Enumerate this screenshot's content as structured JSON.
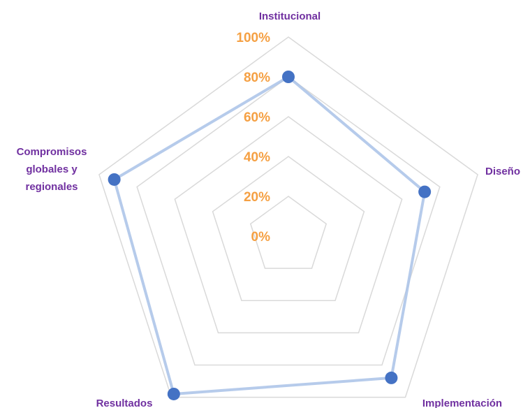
{
  "chart_data": {
    "type": "radar",
    "categories": [
      "Institucional",
      "Diseño",
      "Implementación",
      "Resultados",
      "Compromisos\nglobales y\nregionales"
    ],
    "series": [
      {
        "values": [
          80,
          72,
          88,
          98,
          92
        ]
      }
    ],
    "r_ticks": [
      "0%",
      "20%",
      "40%",
      "60%",
      "80%",
      "100%"
    ],
    "rlim": [
      0,
      100
    ],
    "grid": true,
    "legend": "none",
    "colors": {
      "series_point": "#4472c4",
      "series_line": "#a9c2e8",
      "grid": "#d9d9d9",
      "tick_labels": "#f5a043",
      "category_labels": "#7030a0"
    }
  }
}
